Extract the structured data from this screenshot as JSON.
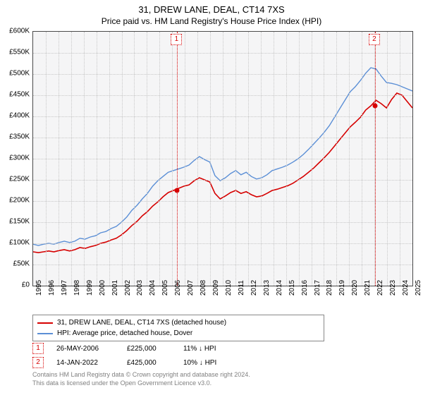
{
  "title": "31, DREW LANE, DEAL, CT14 7XS",
  "subtitle": "Price paid vs. HM Land Registry's House Price Index (HPI)",
  "chart": {
    "type": "line",
    "background_color": "#f5f5f6",
    "border_color": "#4a4a4a",
    "grid_color": "#c8c8c8",
    "ylim": [
      0,
      600000
    ],
    "ytick_step": 50000,
    "yticklabels": [
      "£0",
      "£50K",
      "£100K",
      "£150K",
      "£200K",
      "£250K",
      "£300K",
      "£350K",
      "£400K",
      "£450K",
      "£500K",
      "£550K",
      "£600K"
    ],
    "xyears": [
      1995,
      1996,
      1997,
      1998,
      1999,
      2000,
      2001,
      2002,
      2003,
      2004,
      2005,
      2006,
      2007,
      2008,
      2009,
      2010,
      2011,
      2012,
      2013,
      2014,
      2015,
      2016,
      2017,
      2018,
      2019,
      2020,
      2021,
      2022,
      2023,
      2024,
      2025
    ],
    "series": [
      {
        "name": "31, DREW LANE, DEAL, CT14 7XS (detached house)",
        "color": "#d60000",
        "width": 1.6,
        "data": [
          80,
          78,
          80,
          82,
          80,
          83,
          85,
          82,
          85,
          90,
          88,
          92,
          95,
          100,
          103,
          108,
          112,
          120,
          130,
          142,
          152,
          165,
          175,
          188,
          198,
          210,
          220,
          225,
          230,
          235,
          238,
          248,
          255,
          250,
          245,
          218,
          205,
          212,
          220,
          225,
          218,
          222,
          215,
          210,
          212,
          218,
          225,
          228,
          232,
          236,
          242,
          250,
          258,
          268,
          278,
          290,
          302,
          315,
          330,
          345,
          360,
          375,
          386,
          398,
          415,
          425,
          438,
          430,
          420,
          440,
          455,
          450,
          435,
          420
        ]
      },
      {
        "name": "HPI: Average price, detached house, Dover",
        "color": "#5b8fd6",
        "width": 1.4,
        "data": [
          98,
          95,
          98,
          100,
          98,
          102,
          105,
          102,
          105,
          112,
          110,
          115,
          118,
          125,
          128,
          135,
          140,
          150,
          162,
          178,
          190,
          205,
          218,
          235,
          248,
          258,
          268,
          272,
          276,
          280,
          285,
          296,
          305,
          298,
          292,
          260,
          248,
          255,
          265,
          272,
          262,
          268,
          258,
          252,
          255,
          262,
          272,
          276,
          280,
          285,
          292,
          300,
          310,
          322,
          335,
          348,
          362,
          378,
          398,
          418,
          438,
          458,
          470,
          485,
          502,
          515,
          512,
          495,
          480,
          478,
          475,
          470,
          465,
          460
        ]
      }
    ],
    "markers": [
      {
        "num": "1",
        "year": 2006.4,
        "price": 225000
      },
      {
        "num": "2",
        "year": 2022.04,
        "price": 425000
      }
    ]
  },
  "legend": {
    "items": [
      {
        "color": "#d60000",
        "label": "31, DREW LANE, DEAL, CT14 7XS (detached house)"
      },
      {
        "color": "#5b8fd6",
        "label": "HPI: Average price, detached house, Dover"
      }
    ]
  },
  "events": [
    {
      "num": "1",
      "date": "26-MAY-2006",
      "price": "£225,000",
      "delta": "11% ↓ HPI"
    },
    {
      "num": "2",
      "date": "14-JAN-2022",
      "price": "£425,000",
      "delta": "10% ↓ HPI"
    }
  ],
  "footer": {
    "line1": "Contains HM Land Registry data © Crown copyright and database right 2024.",
    "line2": "This data is licensed under the Open Government Licence v3.0."
  }
}
